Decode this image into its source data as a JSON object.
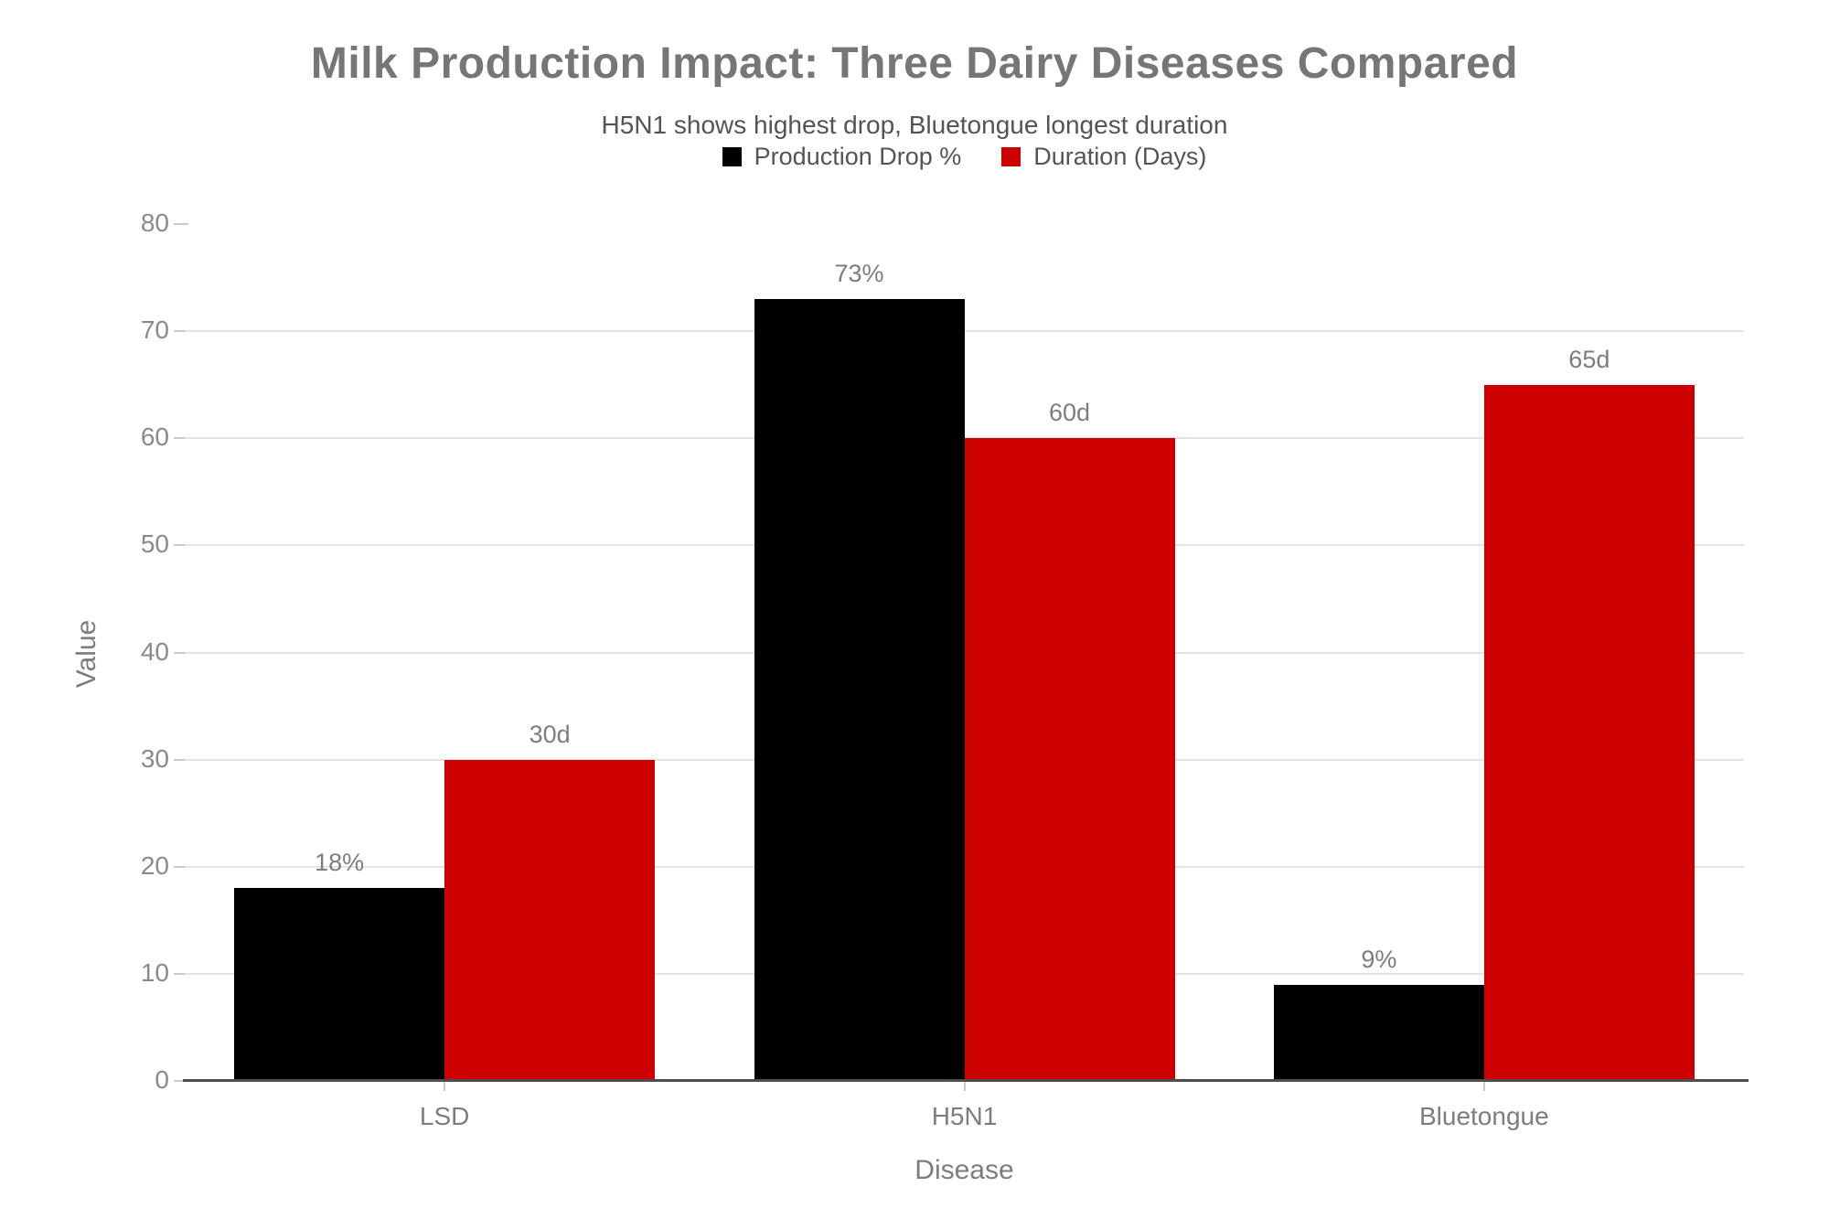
{
  "chart_data": {
    "type": "bar",
    "title": "Milk Production Impact: Three Dairy Diseases Compared",
    "subtitle": "H5N1 shows highest drop, Bluetongue longest duration",
    "xlabel": "Disease",
    "ylabel": "Value",
    "categories": [
      "LSD",
      "H5N1",
      "Bluetongue"
    ],
    "series": [
      {
        "name": "Production Drop %",
        "color": "#000000",
        "values": [
          18,
          73,
          9
        ],
        "value_labels": [
          "18%",
          "73%",
          "9%"
        ]
      },
      {
        "name": "Duration (Days)",
        "color": "#cc0000",
        "values": [
          30,
          60,
          65
        ],
        "value_labels": [
          "30d",
          "60d",
          "65d"
        ]
      }
    ],
    "ylim": [
      0,
      80
    ],
    "yticks": [
      0,
      10,
      20,
      30,
      40,
      50,
      60,
      70,
      80
    ],
    "grid": "horizontal gridlines at 10-70, none at 80",
    "legend_position": "top-center",
    "bar_data_summary": {
      "LSD": {
        "production_drop_pct": 18,
        "duration_days": 30
      },
      "H5N1": {
        "production_drop_pct": 73,
        "duration_days": 60
      },
      "Bluetongue": {
        "production_drop_pct": 9,
        "duration_days": 65
      }
    }
  },
  "style_colors": {
    "background": "#ffffff",
    "title_text": "#767676",
    "subtitle_text": "#545454",
    "legend_text": "#545454",
    "tick_label_text": "#8a8a8a",
    "bar_value_label_text": "#7d7d7d",
    "axis_title_text": "#7d7d7d",
    "gridline": "#e3e3e3",
    "axis_line": "#4d4d4d",
    "tick_mark": "#c9c9c9",
    "bar_black": "#000000",
    "bar_red": "#cc0000"
  }
}
